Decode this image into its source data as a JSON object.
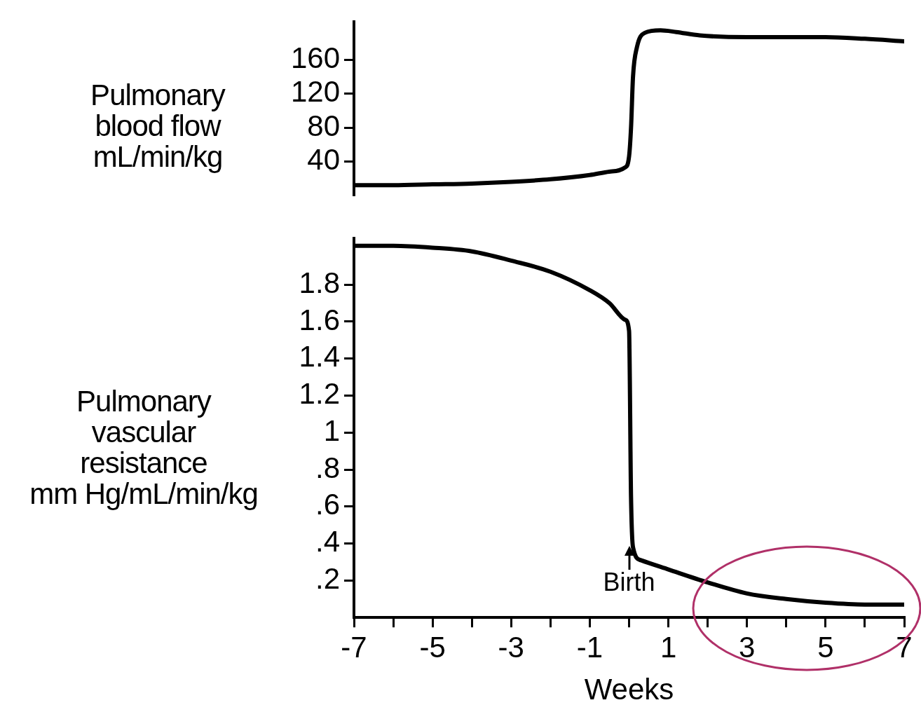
{
  "chart_data": [
    {
      "type": "line",
      "ylabel": "Pulmonary\nblood flow\nmL/min/kg",
      "x": [
        -7,
        -6,
        -5,
        -4,
        -3,
        -2,
        -1,
        -0.5,
        -0.1,
        0,
        0.05,
        0.1,
        0.2,
        0.4,
        0.8,
        1.2,
        1.8,
        3,
        5,
        6,
        7
      ],
      "series": [
        {
          "color": "#000000",
          "values": [
            12,
            12,
            13,
            14,
            16,
            19,
            24,
            28,
            33,
            46,
            80,
            140,
            175,
            192,
            195,
            193,
            189,
            187,
            187,
            185,
            182
          ]
        }
      ],
      "xlim": [
        -7,
        7
      ],
      "ylim": [
        0,
        205
      ],
      "yticks": [
        40,
        80,
        120,
        160
      ],
      "tick_labels": "y",
      "grid": false,
      "legend": false,
      "marker": "none",
      "line_style": "solid"
    },
    {
      "type": "line",
      "ylabel": "Pulmonary\nvascular\nresistance\nmm Hg/mL/min/kg",
      "xlabel": "Weeks",
      "x": [
        -7,
        -6,
        -5,
        -4,
        -3,
        -2,
        -1,
        -0.5,
        -0.1,
        0,
        0.05,
        0.1,
        0.3,
        1,
        2,
        3,
        4,
        5,
        6,
        7
      ],
      "series": [
        {
          "color": "#000000",
          "values": [
            2.01,
            2.01,
            2,
            1.98,
            1.93,
            1.87,
            1.77,
            1.7,
            1.61,
            1.55,
            0.65,
            0.38,
            0.31,
            0.26,
            0.19,
            0.13,
            0.1,
            0.08,
            0.07,
            0.07
          ]
        }
      ],
      "xlim": [
        -7,
        7
      ],
      "xticks": [
        -7,
        {
          "value": -6,
          "label": null
        },
        -5,
        {
          "value": -4,
          "label": null
        },
        -3,
        {
          "value": -2,
          "label": null
        },
        -1,
        {
          "value": 0,
          "label": null
        },
        1,
        {
          "value": 2,
          "label": null
        },
        3,
        {
          "value": 4,
          "label": null
        },
        5,
        {
          "value": 6,
          "label": null
        },
        7
      ],
      "ylim": [
        0,
        2.05
      ],
      "yticks": [
        {
          "value": 0.2,
          "label": ".2"
        },
        {
          "value": 0.4,
          "label": ".4"
        },
        {
          "value": 0.6,
          "label": ".6"
        },
        {
          "value": 0.8,
          "label": ".8"
        },
        1.0,
        1.2,
        1.4,
        1.6,
        1.8
      ],
      "annotations": [
        "Birth"
      ],
      "grid": false,
      "legend": false,
      "marker": "none",
      "line_style": "solid"
    }
  ]
}
